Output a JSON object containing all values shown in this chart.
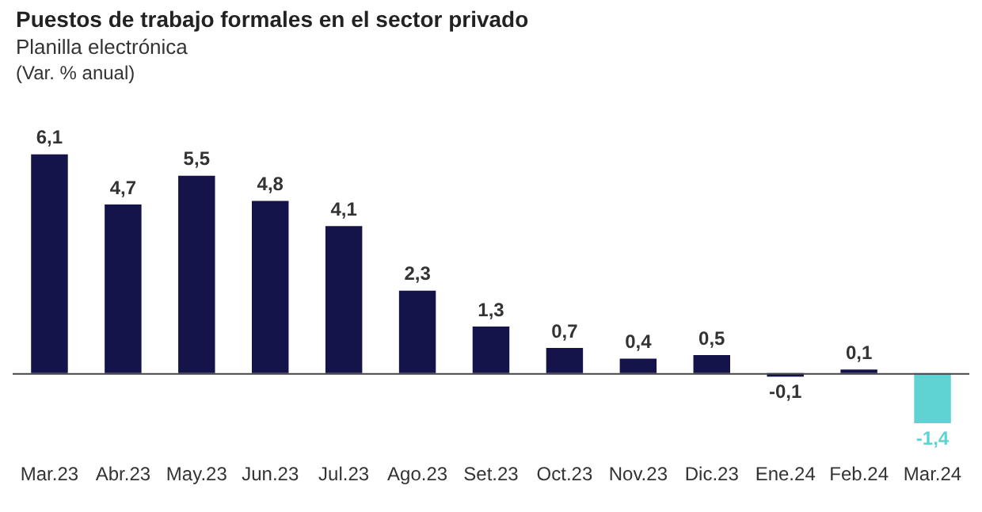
{
  "chart_data": {
    "type": "bar",
    "title": "Puestos de trabajo formales en el sector privado",
    "subtitle": "Planilla electrónica",
    "ylabel": "(Var. % anual)",
    "categories": [
      "Mar.23",
      "Abr.23",
      "May.23",
      "Jun.23",
      "Jul.23",
      "Ago.23",
      "Set.23",
      "Oct.23",
      "Nov.23",
      "Dic.23",
      "Ene.24",
      "Feb.24",
      "Mar.24"
    ],
    "values": [
      6.1,
      4.7,
      5.5,
      4.8,
      4.1,
      2.3,
      1.3,
      0.7,
      0.4,
      0.5,
      -0.1,
      0.1,
      -1.4
    ],
    "colors": [
      "#14144a",
      "#14144a",
      "#14144a",
      "#14144a",
      "#14144a",
      "#14144a",
      "#14144a",
      "#14144a",
      "#14144a",
      "#14144a",
      "#14144a",
      "#14144a",
      "#5fd3d3"
    ],
    "value_labels": [
      "6,1",
      "4,7",
      "5,5",
      "4,8",
      "4,1",
      "2,3",
      "1,3",
      "0,7",
      "0,4",
      "0,5",
      "-0,1",
      "0,1",
      "-1,4"
    ],
    "grid": false,
    "legend": false
  }
}
